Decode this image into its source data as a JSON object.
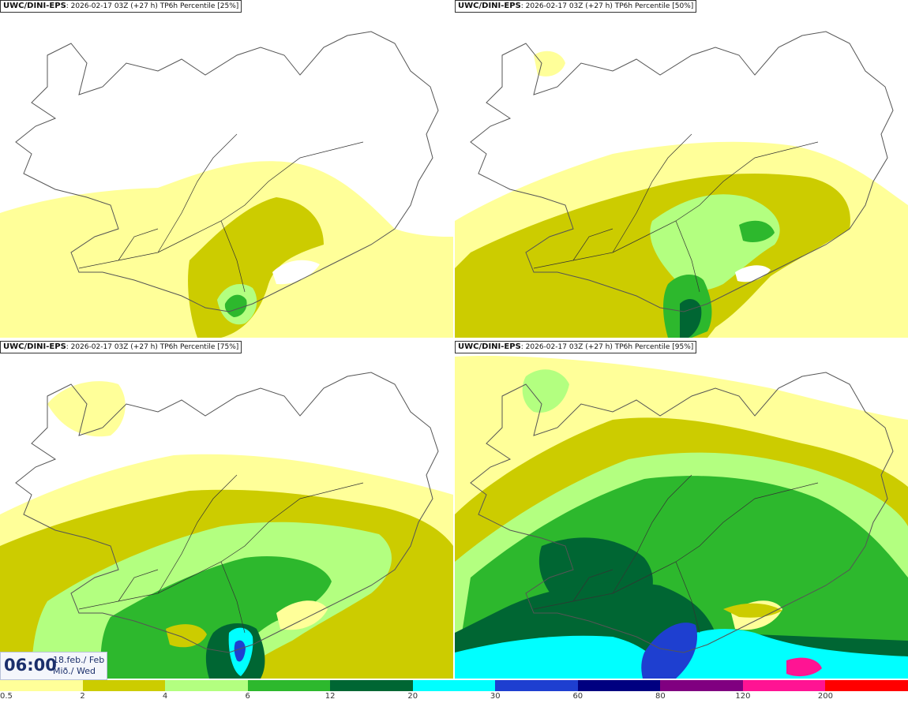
{
  "panels": [
    {
      "model": "UWC/DINI-EPS",
      "run": ": 2026-02-17 03Z (+27 h)",
      "product": " TP6h Percentile [25%]",
      "level": 1
    },
    {
      "model": "UWC/DINI-EPS",
      "run": ": 2026-02-17 03Z (+27 h)",
      "product": " TP6h Percentile [50%]",
      "level": 2
    },
    {
      "model": "UWC/DINI-EPS",
      "run": ": 2026-02-17 03Z (+27 h)",
      "product": " TP6h Percentile [75%]",
      "level": 3
    },
    {
      "model": "UWC/DINI-EPS",
      "run": ": 2026-02-17 03Z (+27 h)",
      "product": " TP6h Percentile [95%]",
      "level": 4
    }
  ],
  "valid_time": {
    "time": "06:00",
    "date_line1": "18.feb./ Feb",
    "date_line2": "Mið./ Wed"
  },
  "legend": {
    "ticks": [
      "0.5",
      "2",
      "4",
      "6",
      "12",
      "20",
      "30",
      "60",
      "80",
      "120",
      "200"
    ],
    "colors": [
      "#ffff99",
      "#cccc00",
      "#b3ff80",
      "#2db82d",
      "#006633",
      "#00ffff",
      "#1e3fd0",
      "#000080",
      "#800080",
      "#ff1493",
      "#ff0000"
    ]
  },
  "colors": {
    "coast": "#555555",
    "road": "#333333"
  }
}
